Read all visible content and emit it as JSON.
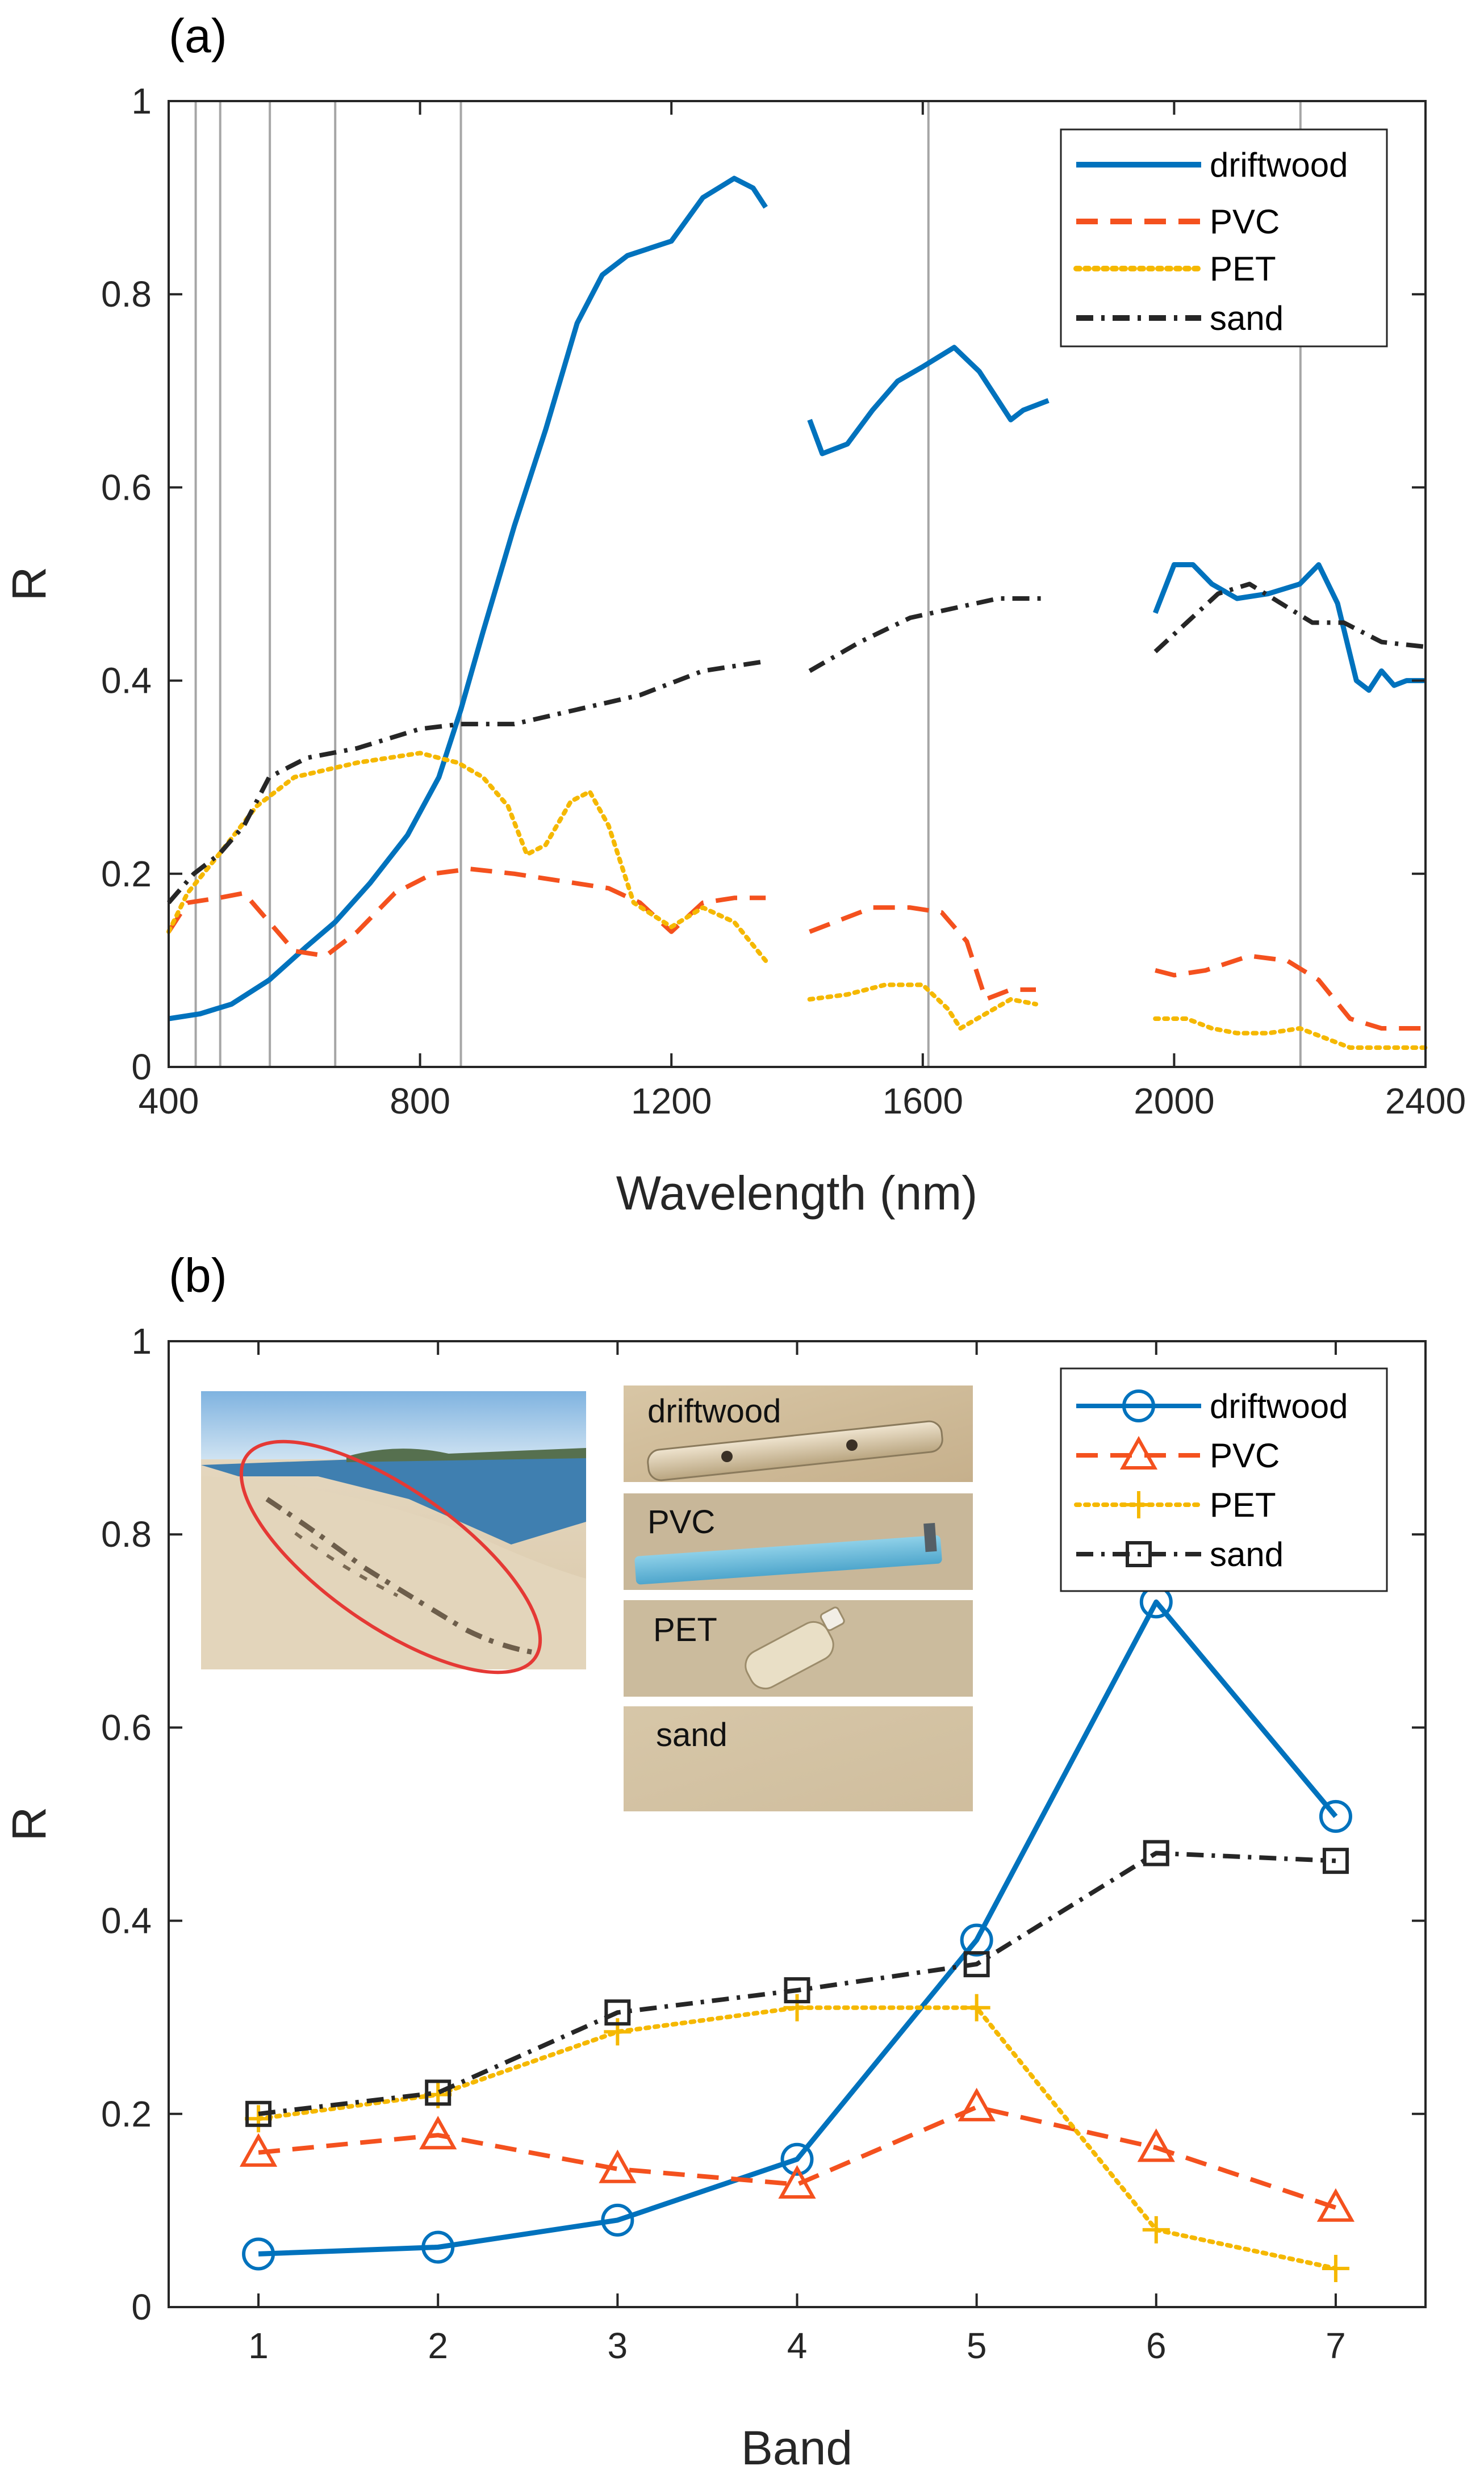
{
  "colors": {
    "driftwood": "#0072BD",
    "PVC": "#F4511E",
    "PET": "#F5B800",
    "sand": "#262626",
    "axis": "#262626",
    "bandline": "#A6A6A6",
    "ellipse": "#E53935"
  },
  "chart_data": [
    {
      "type": "line",
      "panel_label": "(a)",
      "xlabel": "Wavelength (nm)",
      "ylabel": "R",
      "xlim": [
        400,
        2400
      ],
      "ylim": [
        0,
        1
      ],
      "xticks": [
        "400",
        "800",
        "1200",
        "1600",
        "2000",
        "2400"
      ],
      "yticks": [
        "0",
        "0.2",
        "0.4",
        "0.6",
        "0.8",
        "1"
      ],
      "band_lines": [
        443,
        482,
        561,
        665,
        865,
        1609,
        2201
      ],
      "legend": {
        "position": "top-right",
        "entries": [
          "driftwood",
          "PVC",
          "PET",
          "sand"
        ]
      },
      "series": [
        {
          "name": "driftwood",
          "style": "solid",
          "segments": [
            [
              [
                400,
                0.05
              ],
              [
                450,
                0.055
              ],
              [
                500,
                0.065
              ],
              [
                560,
                0.09
              ],
              [
                620,
                0.125
              ],
              [
                665,
                0.15
              ],
              [
                720,
                0.19
              ],
              [
                780,
                0.24
              ],
              [
                830,
                0.3
              ],
              [
                865,
                0.37
              ],
              [
                900,
                0.45
              ],
              [
                950,
                0.56
              ],
              [
                1000,
                0.66
              ],
              [
                1050,
                0.77
              ],
              [
                1090,
                0.82
              ],
              [
                1130,
                0.84
              ],
              [
                1200,
                0.855
              ],
              [
                1250,
                0.9
              ],
              [
                1300,
                0.92
              ],
              [
                1330,
                0.91
              ],
              [
                1350,
                0.89
              ]
            ],
            [
              [
                1420,
                0.67
              ],
              [
                1440,
                0.635
              ],
              [
                1480,
                0.645
              ],
              [
                1520,
                0.68
              ],
              [
                1560,
                0.71
              ],
              [
                1600,
                0.725
              ],
              [
                1650,
                0.745
              ],
              [
                1690,
                0.72
              ],
              [
                1720,
                0.69
              ],
              [
                1740,
                0.67
              ],
              [
                1760,
                0.68
              ],
              [
                1800,
                0.69
              ]
            ],
            [
              [
                1970,
                0.47
              ],
              [
                2000,
                0.52
              ],
              [
                2030,
                0.52
              ],
              [
                2060,
                0.5
              ],
              [
                2100,
                0.485
              ],
              [
                2150,
                0.49
              ],
              [
                2200,
                0.5
              ],
              [
                2230,
                0.52
              ],
              [
                2260,
                0.48
              ],
              [
                2290,
                0.4
              ],
              [
                2310,
                0.39
              ],
              [
                2330,
                0.41
              ],
              [
                2350,
                0.395
              ],
              [
                2370,
                0.4
              ],
              [
                2400,
                0.4
              ]
            ]
          ]
        },
        {
          "name": "PVC",
          "style": "dashed",
          "segments": [
            [
              [
                400,
                0.14
              ],
              [
                430,
                0.17
              ],
              [
                480,
                0.175
              ],
              [
                520,
                0.18
              ],
              [
                560,
                0.15
              ],
              [
                600,
                0.12
              ],
              [
                650,
                0.115
              ],
              [
                700,
                0.14
              ],
              [
                760,
                0.18
              ],
              [
                820,
                0.2
              ],
              [
                880,
                0.205
              ],
              [
                950,
                0.2
              ],
              [
                1050,
                0.19
              ],
              [
                1100,
                0.185
              ],
              [
                1150,
                0.17
              ],
              [
                1200,
                0.14
              ],
              [
                1250,
                0.17
              ],
              [
                1300,
                0.175
              ],
              [
                1350,
                0.175
              ]
            ],
            [
              [
                1420,
                0.14
              ],
              [
                1460,
                0.15
              ],
              [
                1520,
                0.165
              ],
              [
                1580,
                0.165
              ],
              [
                1630,
                0.16
              ],
              [
                1670,
                0.13
              ],
              [
                1700,
                0.07
              ],
              [
                1740,
                0.08
              ],
              [
                1780,
                0.08
              ]
            ],
            [
              [
                1970,
                0.1
              ],
              [
                2000,
                0.095
              ],
              [
                2050,
                0.1
              ],
              [
                2120,
                0.115
              ],
              [
                2180,
                0.11
              ],
              [
                2230,
                0.09
              ],
              [
                2280,
                0.05
              ],
              [
                2330,
                0.04
              ],
              [
                2400,
                0.04
              ]
            ]
          ]
        },
        {
          "name": "PET",
          "style": "dotted",
          "segments": [
            [
              [
                400,
                0.14
              ],
              [
                430,
                0.18
              ],
              [
                480,
                0.22
              ],
              [
                540,
                0.27
              ],
              [
                600,
                0.3
              ],
              [
                700,
                0.315
              ],
              [
                800,
                0.325
              ],
              [
                860,
                0.315
              ],
              [
                900,
                0.3
              ],
              [
                940,
                0.27
              ],
              [
                970,
                0.22
              ],
              [
                1000,
                0.23
              ],
              [
                1040,
                0.275
              ],
              [
                1070,
                0.285
              ],
              [
                1100,
                0.25
              ],
              [
                1140,
                0.17
              ],
              [
                1200,
                0.145
              ],
              [
                1250,
                0.165
              ],
              [
                1300,
                0.15
              ],
              [
                1350,
                0.11
              ]
            ],
            [
              [
                1420,
                0.07
              ],
              [
                1480,
                0.075
              ],
              [
                1540,
                0.085
              ],
              [
                1600,
                0.085
              ],
              [
                1640,
                0.06
              ],
              [
                1660,
                0.04
              ],
              [
                1700,
                0.055
              ],
              [
                1740,
                0.07
              ],
              [
                1780,
                0.065
              ]
            ],
            [
              [
                1970,
                0.05
              ],
              [
                2020,
                0.05
              ],
              [
                2060,
                0.04
              ],
              [
                2100,
                0.035
              ],
              [
                2150,
                0.035
              ],
              [
                2200,
                0.04
              ],
              [
                2240,
                0.03
              ],
              [
                2280,
                0.02
              ],
              [
                2330,
                0.02
              ],
              [
                2400,
                0.02
              ]
            ]
          ]
        },
        {
          "name": "sand",
          "style": "dashdot",
          "segments": [
            [
              [
                400,
                0.17
              ],
              [
                440,
                0.2
              ],
              [
                480,
                0.22
              ],
              [
                520,
                0.25
              ],
              [
                560,
                0.3
              ],
              [
                620,
                0.32
              ],
              [
                700,
                0.33
              ],
              [
                800,
                0.35
              ],
              [
                865,
                0.355
              ],
              [
                950,
                0.355
              ],
              [
                1050,
                0.37
              ],
              [
                1150,
                0.385
              ],
              [
                1250,
                0.41
              ],
              [
                1350,
                0.42
              ]
            ],
            [
              [
                1420,
                0.41
              ],
              [
                1500,
                0.44
              ],
              [
                1580,
                0.465
              ],
              [
                1650,
                0.475
              ],
              [
                1720,
                0.485
              ],
              [
                1800,
                0.485
              ]
            ],
            [
              [
                1970,
                0.43
              ],
              [
                2020,
                0.46
              ],
              [
                2070,
                0.49
              ],
              [
                2120,
                0.5
              ],
              [
                2170,
                0.48
              ],
              [
                2220,
                0.46
              ],
              [
                2270,
                0.46
              ],
              [
                2330,
                0.44
              ],
              [
                2400,
                0.435
              ]
            ]
          ]
        }
      ]
    },
    {
      "type": "line",
      "panel_label": "(b)",
      "xlabel": "Band",
      "ylabel": "R",
      "xlim": [
        0.5,
        7.5
      ],
      "ylim": [
        0,
        1
      ],
      "categories": [
        "1",
        "2",
        "3",
        "4",
        "5",
        "6",
        "7"
      ],
      "yticks": [
        "0",
        "0.2",
        "0.4",
        "0.6",
        "0.8",
        "1"
      ],
      "legend": {
        "position": "top-right",
        "entries": [
          "driftwood",
          "PVC",
          "PET",
          "sand"
        ]
      },
      "series": [
        {
          "name": "driftwood",
          "style": "solid",
          "marker": "circle",
          "values": [
            0.055,
            0.062,
            0.09,
            0.153,
            0.38,
            0.73,
            0.508
          ]
        },
        {
          "name": "PVC",
          "style": "dashed",
          "marker": "triangle",
          "values": [
            0.16,
            0.178,
            0.143,
            0.127,
            0.207,
            0.165,
            0.103
          ]
        },
        {
          "name": "PET",
          "style": "dotted",
          "marker": "plus",
          "values": [
            0.195,
            0.22,
            0.285,
            0.31,
            0.31,
            0.08,
            0.04
          ]
        },
        {
          "name": "sand",
          "style": "dashdot",
          "marker": "square",
          "values": [
            0.2,
            0.222,
            0.305,
            0.328,
            0.355,
            0.47,
            0.462
          ]
        }
      ],
      "insets": {
        "photo_labels": [
          "driftwood",
          "PVC",
          "PET",
          "sand"
        ]
      }
    }
  ]
}
